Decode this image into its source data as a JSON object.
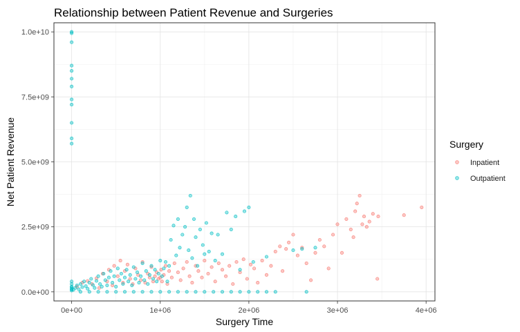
{
  "chart_data": {
    "type": "scatter",
    "title": "Relationship between Patient Revenue and Surgeries",
    "xlabel": "Surgery Time",
    "ylabel": "Net Patient Revenue",
    "xlim": [
      -200000,
      4100000
    ],
    "ylim": [
      -350000000,
      10350000000
    ],
    "x_ticks": [
      {
        "value": 0,
        "label": "0e+00"
      },
      {
        "value": 1000000,
        "label": "1e+06"
      },
      {
        "value": 2000000,
        "label": "2e+06"
      },
      {
        "value": 3000000,
        "label": "3e+06"
      },
      {
        "value": 4000000,
        "label": "4e+06"
      }
    ],
    "y_ticks": [
      {
        "value": 0,
        "label": "0.0e+00"
      },
      {
        "value": 2500000000,
        "label": "2.5e+09"
      },
      {
        "value": 5000000000,
        "label": "5.0e+09"
      },
      {
        "value": 7500000000,
        "label": "7.5e+09"
      },
      {
        "value": 10000000000,
        "label": "1.0e+10"
      }
    ],
    "grid": true,
    "legend": {
      "title": "Surgery",
      "position": "right"
    },
    "series": [
      {
        "name": "Inpatient",
        "color": "#F8766D",
        "points": [
          [
            60000,
            200000000
          ],
          [
            120000,
            350000000
          ],
          [
            180000,
            420000000
          ],
          [
            230000,
            300000000
          ],
          [
            280000,
            520000000
          ],
          [
            310000,
            150000000
          ],
          [
            350000,
            700000000
          ],
          [
            400000,
            400000000
          ],
          [
            420000,
            850000000
          ],
          [
            460000,
            250000000
          ],
          [
            480000,
            1000000000
          ],
          [
            520000,
            600000000
          ],
          [
            550000,
            1200000000
          ],
          [
            580000,
            350000000
          ],
          [
            600000,
            800000000
          ],
          [
            630000,
            1050000000
          ],
          [
            660000,
            500000000
          ],
          [
            690000,
            300000000
          ],
          [
            720000,
            900000000
          ],
          [
            750000,
            650000000
          ],
          [
            780000,
            450000000
          ],
          [
            800000,
            1150000000
          ],
          [
            830000,
            350000000
          ],
          [
            860000,
            700000000
          ],
          [
            880000,
            550000000
          ],
          [
            900000,
            950000000
          ],
          [
            920000,
            400000000
          ],
          [
            940000,
            600000000
          ],
          [
            960000,
            750000000
          ],
          [
            980000,
            500000000
          ],
          [
            1000000,
            550000000
          ],
          [
            1010000,
            850000000
          ],
          [
            1020000,
            400000000
          ],
          [
            1040000,
            650000000
          ],
          [
            1060000,
            1000000000
          ],
          [
            1080000,
            300000000
          ],
          [
            1100000,
            800000000
          ],
          [
            1130000,
            550000000
          ],
          [
            1160000,
            1100000000
          ],
          [
            1200000,
            750000000
          ],
          [
            1230000,
            450000000
          ],
          [
            1260000,
            900000000
          ],
          [
            1300000,
            1150000000
          ],
          [
            1330000,
            600000000
          ],
          [
            1360000,
            350000000
          ],
          [
            1400000,
            1000000000
          ],
          [
            1430000,
            800000000
          ],
          [
            1470000,
            550000000
          ],
          [
            1500000,
            1200000000
          ],
          [
            1540000,
            700000000
          ],
          [
            1580000,
            950000000
          ],
          [
            1620000,
            400000000
          ],
          [
            1660000,
            1100000000
          ],
          [
            1700000,
            850000000
          ],
          [
            1740000,
            600000000
          ],
          [
            1780000,
            1000000000
          ],
          [
            1820000,
            300000000
          ],
          [
            1860000,
            1150000000
          ],
          [
            1900000,
            750000000
          ],
          [
            1940000,
            1250000000
          ],
          [
            1980000,
            500000000
          ],
          [
            2020000,
            1050000000
          ],
          [
            2060000,
            900000000
          ],
          [
            2100000,
            350000000
          ],
          [
            2150000,
            1200000000
          ],
          [
            2200000,
            650000000
          ],
          [
            2250000,
            1000000000
          ],
          [
            2300000,
            1550000000
          ],
          [
            2350000,
            1750000000
          ],
          [
            2380000,
            800000000
          ],
          [
            2420000,
            1650000000
          ],
          [
            2450000,
            1900000000
          ],
          [
            2500000,
            2200000000
          ],
          [
            2550000,
            1400000000
          ],
          [
            2600000,
            1700000000
          ],
          [
            2650000,
            1100000000
          ],
          [
            2700000,
            450000000
          ],
          [
            2750000,
            1500000000
          ],
          [
            2800000,
            2000000000
          ],
          [
            2850000,
            1750000000
          ],
          [
            2900000,
            900000000
          ],
          [
            2950000,
            2200000000
          ],
          [
            3000000,
            2600000000
          ],
          [
            3050000,
            1500000000
          ],
          [
            3100000,
            2800000000
          ],
          [
            3150000,
            2400000000
          ],
          [
            3180000,
            2100000000
          ],
          [
            3200000,
            3100000000
          ],
          [
            3220000,
            3400000000
          ],
          [
            3250000,
            3700000000
          ],
          [
            3280000,
            2600000000
          ],
          [
            3300000,
            2900000000
          ],
          [
            3330000,
            2500000000
          ],
          [
            3360000,
            2700000000
          ],
          [
            3400000,
            3000000000
          ],
          [
            3450000,
            500000000
          ],
          [
            3460000,
            2900000000
          ],
          [
            3750000,
            2950000000
          ],
          [
            3950000,
            3250000000
          ]
        ]
      },
      {
        "name": "Outpatient",
        "color": "#00BFC4",
        "points": [
          [
            0,
            5700000000
          ],
          [
            0,
            5900000000
          ],
          [
            0,
            6500000000
          ],
          [
            0,
            7200000000
          ],
          [
            0,
            7400000000
          ],
          [
            0,
            7900000000
          ],
          [
            0,
            8200000000
          ],
          [
            0,
            8500000000
          ],
          [
            0,
            8700000000
          ],
          [
            0,
            9600000000
          ],
          [
            0,
            9950000000
          ],
          [
            0,
            10000000000
          ],
          [
            0,
            50000000
          ],
          [
            0,
            120000000
          ],
          [
            0,
            200000000
          ],
          [
            0,
            300000000
          ],
          [
            0,
            400000000
          ],
          [
            0,
            180000000
          ],
          [
            0,
            90000000
          ],
          [
            20000,
            80000000
          ],
          [
            40000,
            150000000
          ],
          [
            60000,
            250000000
          ],
          [
            80000,
            100000000
          ],
          [
            100000,
            300000000
          ],
          [
            120000,
            180000000
          ],
          [
            140000,
            400000000
          ],
          [
            160000,
            220000000
          ],
          [
            180000,
            120000000
          ],
          [
            200000,
            350000000
          ],
          [
            220000,
            500000000
          ],
          [
            240000,
            260000000
          ],
          [
            260000,
            150000000
          ],
          [
            280000,
            420000000
          ],
          [
            300000,
            600000000
          ],
          [
            320000,
            300000000
          ],
          [
            340000,
            200000000
          ],
          [
            360000,
            700000000
          ],
          [
            380000,
            450000000
          ],
          [
            400000,
            250000000
          ],
          [
            420000,
            550000000
          ],
          [
            440000,
            800000000
          ],
          [
            460000,
            350000000
          ],
          [
            480000,
            600000000
          ],
          [
            500000,
            200000000
          ],
          [
            520000,
            900000000
          ],
          [
            540000,
            450000000
          ],
          [
            560000,
            700000000
          ],
          [
            580000,
            300000000
          ],
          [
            600000,
            550000000
          ],
          [
            620000,
            850000000
          ],
          [
            640000,
            400000000
          ],
          [
            660000,
            650000000
          ],
          [
            680000,
            250000000
          ],
          [
            700000,
            950000000
          ],
          [
            720000,
            500000000
          ],
          [
            740000,
            750000000
          ],
          [
            760000,
            350000000
          ],
          [
            780000,
            600000000
          ],
          [
            800000,
            1100000000
          ],
          [
            820000,
            450000000
          ],
          [
            840000,
            800000000
          ],
          [
            860000,
            300000000
          ],
          [
            880000,
            650000000
          ],
          [
            900000,
            1000000000
          ],
          [
            920000,
            500000000
          ],
          [
            940000,
            850000000
          ],
          [
            960000,
            400000000
          ],
          [
            980000,
            700000000
          ],
          [
            1000000,
            1200000000
          ],
          [
            1020000,
            600000000
          ],
          [
            1040000,
            900000000
          ],
          [
            1060000,
            1150000000
          ],
          [
            1080000,
            400000000
          ],
          [
            1100000,
            1000000000
          ],
          [
            1120000,
            2000000000
          ],
          [
            1150000,
            2550000000
          ],
          [
            1180000,
            1400000000
          ],
          [
            1200000,
            2800000000
          ],
          [
            1220000,
            1700000000
          ],
          [
            1250000,
            2200000000
          ],
          [
            1280000,
            2500000000
          ],
          [
            1300000,
            3250000000
          ],
          [
            1320000,
            1600000000
          ],
          [
            1340000,
            3700000000
          ],
          [
            1360000,
            1300000000
          ],
          [
            1380000,
            2800000000
          ],
          [
            1400000,
            2100000000
          ],
          [
            1420000,
            1000000000
          ],
          [
            1450000,
            2400000000
          ],
          [
            1480000,
            1800000000
          ],
          [
            1500000,
            1450000000
          ],
          [
            1520000,
            2650000000
          ],
          [
            1550000,
            1550000000
          ],
          [
            1580000,
            2250000000
          ],
          [
            1620000,
            1200000000
          ],
          [
            1650000,
            2200000000
          ],
          [
            1700000,
            1450000000
          ],
          [
            1750000,
            3050000000
          ],
          [
            1800000,
            2400000000
          ],
          [
            1850000,
            2900000000
          ],
          [
            1900000,
            850000000
          ],
          [
            1950000,
            3100000000
          ],
          [
            2000000,
            3250000000
          ],
          [
            2050000,
            1150000000
          ],
          [
            2200000,
            1350000000
          ],
          [
            2500000,
            1600000000
          ],
          [
            2600000,
            1650000000
          ],
          [
            2650000,
            0
          ],
          [
            2750000,
            1700000000
          ],
          [
            100000,
            0
          ],
          [
            200000,
            0
          ],
          [
            300000,
            0
          ],
          [
            400000,
            0
          ],
          [
            500000,
            0
          ],
          [
            600000,
            0
          ],
          [
            700000,
            0
          ],
          [
            800000,
            0
          ],
          [
            900000,
            0
          ],
          [
            1000000,
            0
          ],
          [
            1100000,
            0
          ],
          [
            1200000,
            0
          ],
          [
            1300000,
            0
          ],
          [
            1400000,
            0
          ],
          [
            1500000,
            0
          ],
          [
            1600000,
            0
          ],
          [
            1700000,
            0
          ],
          [
            1800000,
            0
          ],
          [
            1900000,
            0
          ],
          [
            2000000,
            0
          ],
          [
            2100000,
            0
          ],
          [
            2200000,
            0
          ],
          [
            2300000,
            0
          ]
        ]
      }
    ]
  }
}
